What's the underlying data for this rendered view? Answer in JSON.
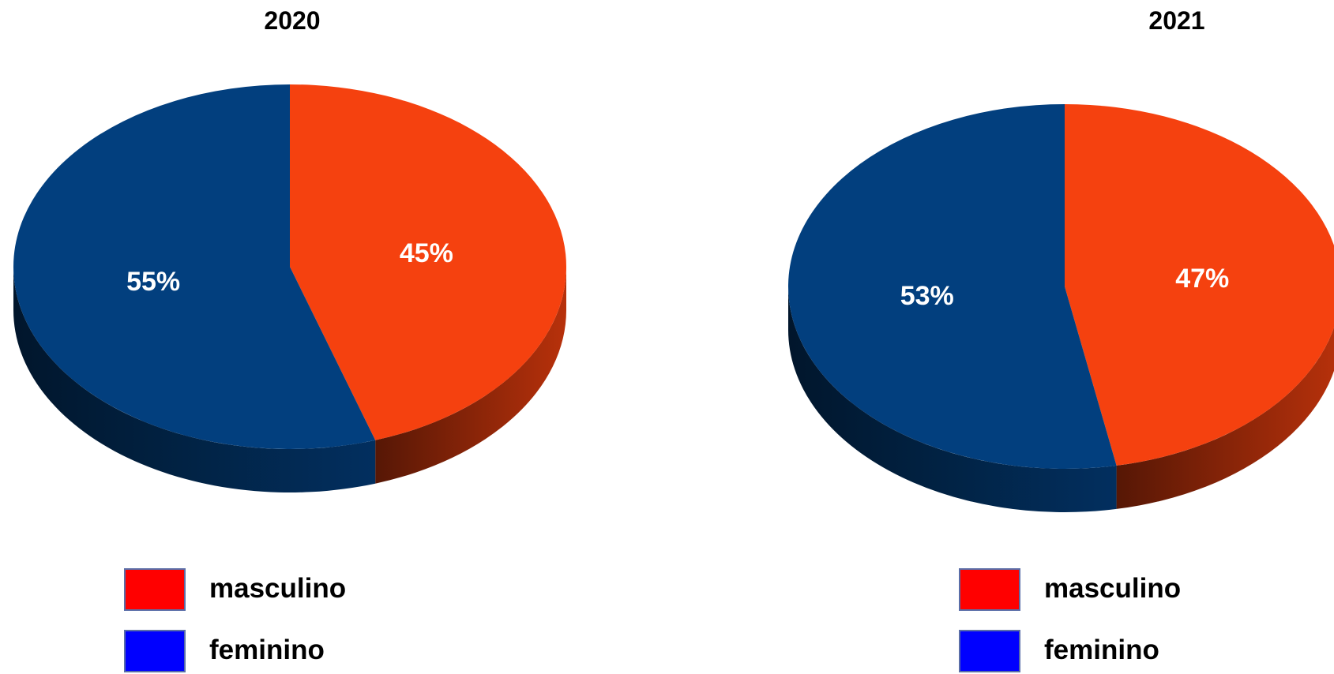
{
  "chart_data": [
    {
      "type": "pie",
      "title": "2020",
      "categories": [
        "masculino",
        "feminino"
      ],
      "values": [
        45,
        55
      ],
      "labels": [
        "45%",
        "55%"
      ],
      "colors": [
        "#f5410f",
        "#023f7e"
      ],
      "legend": [
        {
          "label": "masculino",
          "color": "#ff0000"
        },
        {
          "label": "feminino",
          "color": "#0000ff"
        }
      ],
      "legend_position": "bottom"
    },
    {
      "type": "pie",
      "title": "2021",
      "categories": [
        "masculino",
        "feminino"
      ],
      "values": [
        47,
        53
      ],
      "labels": [
        "47%",
        "53%"
      ],
      "colors": [
        "#f5410f",
        "#023f7e"
      ],
      "legend": [
        {
          "label": "masculino",
          "color": "#ff0000"
        },
        {
          "label": "feminino",
          "color": "#0000ff"
        }
      ],
      "legend_position": "bottom"
    }
  ]
}
